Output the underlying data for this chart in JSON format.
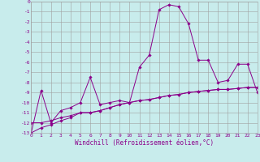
{
  "xlabel": "Windchill (Refroidissement éolien,°C)",
  "bg_color": "#c8ecec",
  "grid_color": "#a0a0a0",
  "line_color": "#8b008b",
  "xlim": [
    0,
    23
  ],
  "ylim": [
    -13,
    0
  ],
  "xticks": [
    0,
    1,
    2,
    3,
    4,
    5,
    6,
    7,
    8,
    9,
    10,
    11,
    12,
    13,
    14,
    15,
    16,
    17,
    18,
    19,
    20,
    21,
    22,
    23
  ],
  "yticks": [
    0,
    -1,
    -2,
    -3,
    -4,
    -5,
    -6,
    -7,
    -8,
    -9,
    -10,
    -11,
    -12,
    -13
  ],
  "line1_x": [
    0,
    1,
    2,
    3,
    4,
    5,
    6,
    7,
    8,
    9,
    10,
    11,
    12,
    13,
    14,
    15,
    16,
    17,
    18,
    19,
    20,
    21,
    22,
    23
  ],
  "line1_y": [
    -13,
    -8.8,
    -12,
    -10.8,
    -10.5,
    -10,
    -7.5,
    -10.2,
    -10,
    -9.8,
    -10,
    -6.5,
    -5.3,
    -0.8,
    -0.3,
    -0.5,
    -2.2,
    -5.8,
    -5.8,
    -8,
    -7.8,
    -6.2,
    -6.2,
    -9
  ],
  "line2_x": [
    0,
    1,
    2,
    3,
    4,
    5,
    6,
    7,
    8,
    9,
    10,
    11,
    12,
    13,
    14,
    15,
    16,
    17,
    18,
    19,
    20,
    21,
    22,
    23
  ],
  "line2_y": [
    -12,
    -12,
    -11.8,
    -11.5,
    -11.3,
    -11,
    -11,
    -10.8,
    -10.5,
    -10.2,
    -10,
    -9.8,
    -9.7,
    -9.5,
    -9.3,
    -9.2,
    -9,
    -8.9,
    -8.8,
    -8.7,
    -8.7,
    -8.6,
    -8.5,
    -8.5
  ],
  "line3_x": [
    0,
    1,
    2,
    3,
    4,
    5,
    6,
    7,
    8,
    9,
    10,
    11,
    12,
    13,
    14,
    15,
    16,
    17,
    18,
    19,
    20,
    21,
    22,
    23
  ],
  "line3_y": [
    -13,
    -12.5,
    -12.2,
    -11.8,
    -11.5,
    -11,
    -11,
    -10.8,
    -10.5,
    -10.2,
    -10,
    -9.8,
    -9.7,
    -9.5,
    -9.3,
    -9.2,
    -9,
    -8.9,
    -8.8,
    -8.7,
    -8.7,
    -8.6,
    -8.5,
    -8.5
  ],
  "marker": "D",
  "markersize": 1.8,
  "linewidth": 0.7,
  "tick_fontsize": 4.5,
  "xlabel_fontsize": 5.5
}
